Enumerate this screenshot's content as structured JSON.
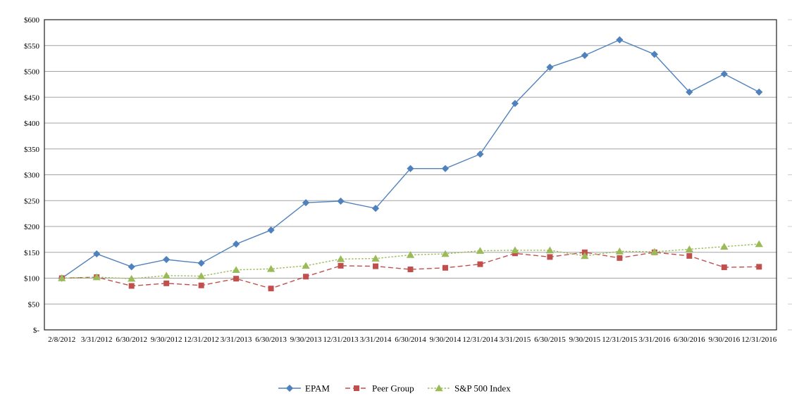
{
  "page": {
    "background": "#ffffff"
  },
  "chart_data": {
    "type": "line",
    "title": "",
    "x_categories": [
      "2/8/2012",
      "3/31/2012",
      "6/30/2012",
      "9/30/2012",
      "12/31/2012",
      "3/31/2013",
      "6/30/2013",
      "9/30/2013",
      "12/31/2013",
      "3/31/2014",
      "6/30/2014",
      "9/30/2014",
      "12/31/2014",
      "3/31/2015",
      "6/30/2015",
      "9/30/2015",
      "12/31/2015",
      "3/31/2016",
      "6/30/2016",
      "9/30/2016",
      "12/31/2016"
    ],
    "series": [
      {
        "name": "EPAM",
        "color": "#4f81bd",
        "marker": "diamond",
        "line_style": "solid",
        "values": [
          100,
          147,
          122,
          136,
          129,
          166,
          193,
          246,
          249,
          235,
          312,
          312,
          340,
          438,
          508,
          531,
          561,
          533,
          460,
          495,
          460
        ]
      },
      {
        "name": "Peer Group",
        "color": "#c0504d",
        "marker": "square",
        "line_style": "dashed",
        "values": [
          100,
          102,
          85,
          90,
          86,
          99,
          80,
          103,
          124,
          123,
          117,
          120,
          127,
          148,
          141,
          150,
          139,
          150,
          143,
          121,
          122
        ]
      },
      {
        "name": "S&P 500 Index",
        "color": "#9bbb59",
        "marker": "triangle",
        "line_style": "dotted",
        "values": [
          100,
          102,
          99,
          105,
          104,
          116,
          118,
          124,
          137,
          138,
          145,
          147,
          153,
          154,
          154,
          143,
          152,
          151,
          156,
          161,
          166
        ]
      }
    ],
    "y_axis": {
      "min": 0,
      "max": 600,
      "step": 50,
      "tick_labels": [
        "$600",
        "$550",
        "$500",
        "$450",
        "$400",
        "$350",
        "$300",
        "$250",
        "$200",
        "$150",
        "$100",
        "$50",
        "$-"
      ]
    },
    "grid": true,
    "gridline_color": "#a3a3a3",
    "border_color": "#1f1f1f",
    "legend_position": "bottom"
  }
}
